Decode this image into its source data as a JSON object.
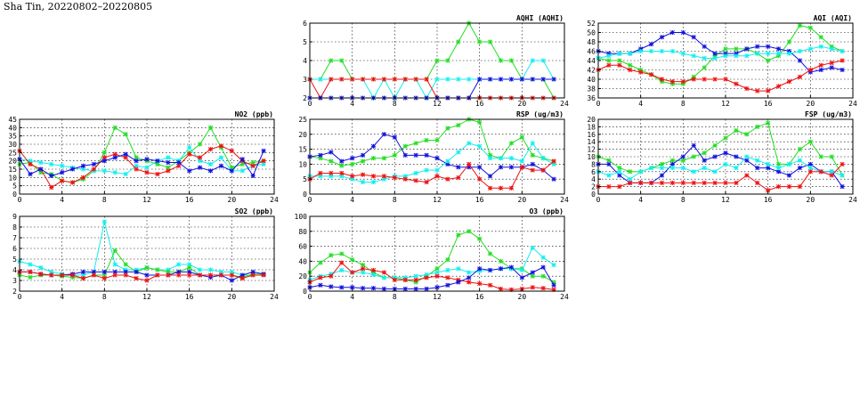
{
  "page": {
    "title": "Sha Tin, 20220802–20220805"
  },
  "colors": {
    "red": "#ee1111",
    "green": "#22dd22",
    "blue": "#1111dd",
    "cyan": "#11eeee"
  },
  "chart_data": [
    {
      "id": "aqhi",
      "type": "line",
      "title": "AQHI (AQHI)",
      "x_ticks": [
        0,
        4,
        8,
        12,
        16,
        20,
        24
      ],
      "y_ticks": [
        2,
        3,
        4,
        5,
        6
      ],
      "xlim": [
        0,
        24
      ],
      "ylim": [
        2,
        6
      ],
      "grid": true,
      "series": [
        {
          "color": "green",
          "values": [
            3,
            3,
            4,
            4,
            3,
            3,
            3,
            3,
            3,
            3,
            3,
            3,
            4,
            4,
            5,
            6,
            5,
            5,
            4,
            4,
            3,
            3,
            3,
            2
          ]
        },
        {
          "color": "cyan",
          "values": [
            3,
            3,
            3,
            3,
            3,
            3,
            2,
            3,
            2,
            3,
            3,
            2,
            3,
            3,
            3,
            3,
            3,
            3,
            3,
            3,
            3,
            4,
            4,
            3
          ]
        },
        {
          "color": "red",
          "values": [
            3,
            2,
            3,
            3,
            3,
            3,
            3,
            3,
            3,
            3,
            3,
            3,
            2,
            2,
            2,
            2,
            2,
            2,
            2,
            2,
            2,
            2,
            2,
            2
          ]
        },
        {
          "color": "blue",
          "values": [
            2,
            2,
            2,
            2,
            2,
            2,
            2,
            2,
            2,
            2,
            2,
            2,
            2,
            2,
            2,
            2,
            3,
            3,
            3,
            3,
            3,
            3,
            3,
            3
          ]
        }
      ]
    },
    {
      "id": "aqi",
      "type": "line",
      "title": "AQI (AQI)",
      "x_ticks": [
        0,
        4,
        8,
        12,
        16,
        20,
        24
      ],
      "y_ticks": [
        36,
        38,
        40,
        42,
        44,
        46,
        48,
        50,
        52
      ],
      "xlim": [
        0,
        24
      ],
      "ylim": [
        36,
        52
      ],
      "grid": true,
      "series": [
        {
          "color": "green",
          "values": [
            44.5,
            44,
            44,
            43,
            42,
            41,
            39.5,
            39,
            39,
            40.5,
            42.5,
            45,
            46.5,
            46.5,
            46.5,
            45.5,
            44,
            45,
            48,
            51.5,
            51,
            49,
            47,
            46
          ]
        },
        {
          "color": "blue",
          "values": [
            46,
            45.5,
            45.5,
            45.5,
            46.5,
            47.5,
            49,
            50,
            50,
            49,
            47,
            45.5,
            45.5,
            45.5,
            46.5,
            47,
            47,
            46.5,
            46,
            44,
            41.5,
            42,
            42.5,
            42
          ]
        },
        {
          "color": "cyan",
          "values": [
            44.5,
            45,
            45.5,
            45.5,
            46,
            46,
            46,
            46,
            45.5,
            45,
            44.5,
            44.5,
            45,
            45,
            45,
            45.5,
            45.5,
            45.5,
            45.5,
            46,
            46.5,
            47,
            46.5,
            46
          ]
        },
        {
          "color": "red",
          "values": [
            42,
            43,
            43,
            42,
            41.5,
            41,
            40,
            39.5,
            39.5,
            40,
            40,
            40,
            40,
            39,
            38,
            37.5,
            37.5,
            38.5,
            39.5,
            40.5,
            42,
            43,
            43.5,
            44
          ]
        }
      ]
    },
    {
      "id": "no2",
      "type": "line",
      "title": "NO2 (ppb)",
      "x_ticks": [
        0,
        4,
        8,
        12,
        16,
        20,
        24
      ],
      "y_ticks": [
        0,
        5,
        10,
        15,
        20,
        25,
        30,
        35,
        40,
        45
      ],
      "xlim": [
        0,
        24
      ],
      "ylim": [
        0,
        45
      ],
      "grid": true,
      "series": [
        {
          "color": "green",
          "values": [
            18,
            19,
            13,
            12,
            8,
            7,
            9,
            14,
            25,
            40,
            36,
            22,
            20,
            18,
            16,
            20,
            25,
            30,
            40,
            28,
            16,
            18,
            19,
            20
          ]
        },
        {
          "color": "cyan",
          "values": [
            21,
            20,
            19,
            18,
            17,
            16,
            15,
            14,
            14,
            13,
            12,
            17,
            16,
            20,
            22,
            20,
            28,
            20,
            18,
            22,
            14,
            14,
            17,
            18
          ]
        },
        {
          "color": "red",
          "values": [
            26,
            18,
            15,
            4,
            8,
            7,
            10,
            15,
            22,
            24,
            22,
            15,
            13,
            12,
            14,
            17,
            24,
            22,
            27,
            29,
            26,
            20,
            17,
            20
          ]
        },
        {
          "color": "blue",
          "values": [
            21,
            12,
            15,
            11,
            13,
            15,
            17,
            18,
            20,
            22,
            24,
            20,
            21,
            20,
            19,
            19,
            14,
            16,
            14,
            17,
            14,
            21,
            11,
            26
          ]
        }
      ]
    },
    {
      "id": "rsp",
      "type": "line",
      "title": "RSP (ug/m3)",
      "x_ticks": [
        0,
        4,
        8,
        12,
        16,
        20,
        24
      ],
      "y_ticks": [
        0,
        5,
        10,
        15,
        20,
        25
      ],
      "xlim": [
        0,
        24
      ],
      "ylim": [
        0,
        25
      ],
      "grid": true,
      "series": [
        {
          "color": "green",
          "values": [
            12.5,
            12,
            11,
            9.5,
            10,
            11,
            12,
            12,
            13,
            16,
            17,
            18,
            18,
            22,
            23,
            25,
            24,
            13,
            12,
            17,
            19,
            13,
            12,
            11
          ]
        },
        {
          "color": "blue",
          "values": [
            12.5,
            13,
            14,
            11,
            12,
            13,
            16,
            20,
            19,
            13,
            13,
            13,
            12,
            10,
            9,
            9,
            9,
            6,
            9,
            9,
            9,
            10,
            8,
            5
          ]
        },
        {
          "color": "cyan",
          "values": [
            6,
            6,
            6,
            6,
            5,
            4,
            4,
            5,
            6,
            6,
            7,
            8,
            8,
            11,
            14,
            17,
            16,
            12,
            12,
            12,
            11,
            17,
            12,
            10
          ]
        },
        {
          "color": "red",
          "values": [
            5,
            7,
            7,
            7,
            6,
            6.5,
            6,
            6,
            5.5,
            5,
            4.5,
            4,
            6,
            5,
            5.5,
            10,
            5,
            2,
            2,
            2,
            9,
            8,
            8,
            11
          ]
        }
      ]
    },
    {
      "id": "fsp",
      "type": "line",
      "title": "FSP (ug/m3)",
      "x_ticks": [
        0,
        4,
        8,
        12,
        16,
        20,
        24
      ],
      "y_ticks": [
        0,
        2,
        4,
        6,
        8,
        10,
        12,
        14,
        16,
        18,
        20
      ],
      "xlim": [
        0,
        24
      ],
      "ylim": [
        0,
        20
      ],
      "grid": true,
      "series": [
        {
          "color": "green",
          "values": [
            10,
            9,
            7,
            6,
            6,
            7,
            8,
            9,
            9,
            10,
            11,
            13,
            15,
            17,
            16,
            18,
            19,
            8,
            8,
            12,
            14,
            10,
            10,
            5
          ]
        },
        {
          "color": "blue",
          "values": [
            8,
            8,
            5,
            3,
            3,
            3,
            5,
            8,
            10,
            13,
            9,
            10,
            11,
            10,
            9,
            7,
            7,
            6,
            5,
            7,
            8,
            6,
            6,
            2
          ]
        },
        {
          "color": "cyan",
          "values": [
            6,
            5,
            6,
            4,
            6,
            7,
            7,
            7,
            7,
            6,
            7,
            6,
            8,
            7,
            10,
            9,
            8,
            7,
            8,
            9,
            7,
            6,
            6,
            5
          ]
        },
        {
          "color": "red",
          "values": [
            2,
            2,
            2,
            3,
            3,
            3,
            3,
            3,
            3,
            3,
            3,
            3,
            3,
            3,
            5,
            3,
            1,
            2,
            2,
            2,
            6,
            6,
            5,
            8
          ]
        }
      ]
    },
    {
      "id": "so2",
      "type": "line",
      "title": "SO2 (ppb)",
      "x_ticks": [
        0,
        4,
        8,
        12,
        16,
        20,
        24
      ],
      "y_ticks": [
        2,
        3,
        4,
        5,
        6,
        7,
        8,
        9
      ],
      "xlim": [
        0,
        24
      ],
      "ylim": [
        2,
        9
      ],
      "grid": true,
      "series": [
        {
          "color": "cyan",
          "values": [
            4.8,
            4.5,
            4.2,
            3.8,
            3.6,
            3.5,
            3.5,
            3.8,
            8.5,
            4.5,
            4,
            4,
            4.2,
            4,
            4,
            4.5,
            4.5,
            4,
            4,
            3.8,
            3.8,
            3.5,
            3.5,
            3.5
          ]
        },
        {
          "color": "green",
          "values": [
            3.5,
            3.3,
            3.5,
            3.5,
            3.4,
            3.3,
            3.2,
            3.5,
            3.5,
            5.8,
            4.5,
            3.8,
            4.2,
            4,
            3.8,
            3.8,
            4.2,
            3.5,
            3.5,
            3.5,
            3.5,
            3.3,
            3.6,
            3.6
          ]
        },
        {
          "color": "blue",
          "values": [
            3.8,
            3.8,
            3.6,
            3.5,
            3.5,
            3.6,
            3.8,
            3.8,
            3.8,
            3.8,
            3.8,
            3.8,
            3.5,
            3.5,
            3.5,
            3.8,
            3.8,
            3.5,
            3.3,
            3.5,
            3,
            3.5,
            3.8,
            3.6
          ]
        },
        {
          "color": "red",
          "values": [
            3.8,
            3.8,
            3.6,
            3.5,
            3.5,
            3.5,
            3.2,
            3.5,
            3.2,
            3.5,
            3.5,
            3.2,
            3,
            3.5,
            3.5,
            3.5,
            3.5,
            3.5,
            3.5,
            3.5,
            3.5,
            3.2,
            3.5,
            3.5
          ]
        }
      ]
    },
    {
      "id": "o3",
      "type": "line",
      "title": "O3 (ppb)",
      "x_ticks": [
        0,
        4,
        8,
        12,
        16,
        20,
        24
      ],
      "y_ticks": [
        0,
        20,
        40,
        60,
        80,
        100
      ],
      "xlim": [
        0,
        24
      ],
      "ylim": [
        0,
        100
      ],
      "grid": true,
      "series": [
        {
          "color": "green",
          "values": [
            25,
            38,
            48,
            50,
            42,
            35,
            25,
            18,
            18,
            15,
            12,
            20,
            30,
            42,
            75,
            80,
            70,
            50,
            40,
            30,
            30,
            20,
            20,
            12
          ]
        },
        {
          "color": "cyan",
          "values": [
            15,
            20,
            23,
            28,
            25,
            25,
            22,
            18,
            18,
            18,
            20,
            22,
            25,
            28,
            30,
            25,
            27,
            28,
            30,
            30,
            28,
            58,
            45,
            35
          ]
        },
        {
          "color": "red",
          "values": [
            12,
            18,
            20,
            38,
            25,
            30,
            28,
            25,
            15,
            15,
            15,
            18,
            20,
            18,
            15,
            12,
            10,
            8,
            3,
            2,
            3,
            5,
            4,
            2
          ]
        },
        {
          "color": "blue",
          "values": [
            5,
            8,
            6,
            5,
            5,
            4,
            4,
            3,
            3,
            3,
            3,
            3,
            5,
            8,
            12,
            18,
            30,
            28,
            30,
            32,
            18,
            25,
            32,
            8
          ]
        }
      ]
    }
  ]
}
